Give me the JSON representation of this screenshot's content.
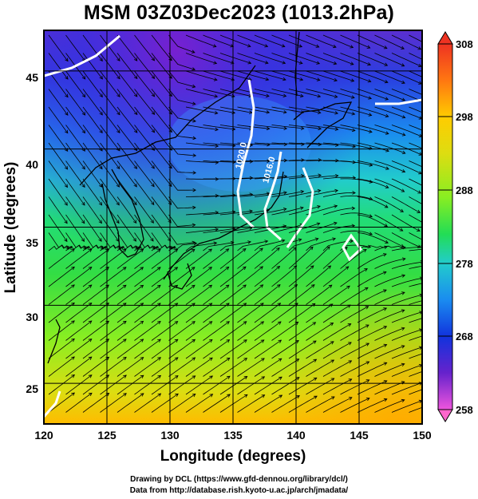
{
  "header": {
    "title": "MSM 03Z03Dec2023 (1013.2hPa)"
  },
  "map": {
    "x_ticks": [
      "120",
      "125",
      "130",
      "135",
      "140",
      "145",
      "150"
    ],
    "y_ticks": [
      "25",
      "30",
      "35",
      "40",
      "45"
    ],
    "xlabel": "Longitude (degrees)",
    "ylabel": "Latitude  (degrees)",
    "lon_range": [
      120,
      150
    ],
    "lat_range": [
      22.4,
      47.6
    ],
    "contours": [
      {
        "label": "1020.0"
      },
      {
        "label": "1016.0"
      }
    ]
  },
  "colorbar": {
    "labels": [
      "308",
      "298",
      "288",
      "278",
      "268",
      "258"
    ],
    "min": 258,
    "max": 308,
    "stops": [
      "#ff99cc",
      "#dd33ee",
      "#6622cc",
      "#1133dd",
      "#1a8cf0",
      "#22cccc",
      "#22dd66",
      "#77ee22",
      "#eeee11",
      "#ffaa00",
      "#ff4411",
      "#ee3322"
    ]
  },
  "footer": {
    "line1": "Drawing by DCL (https://www.gfd-dennou.org/library/dcl/)",
    "line2": "Data from http://database.rish.kyoto-u.ac.jp/arch/jmadata/"
  }
}
